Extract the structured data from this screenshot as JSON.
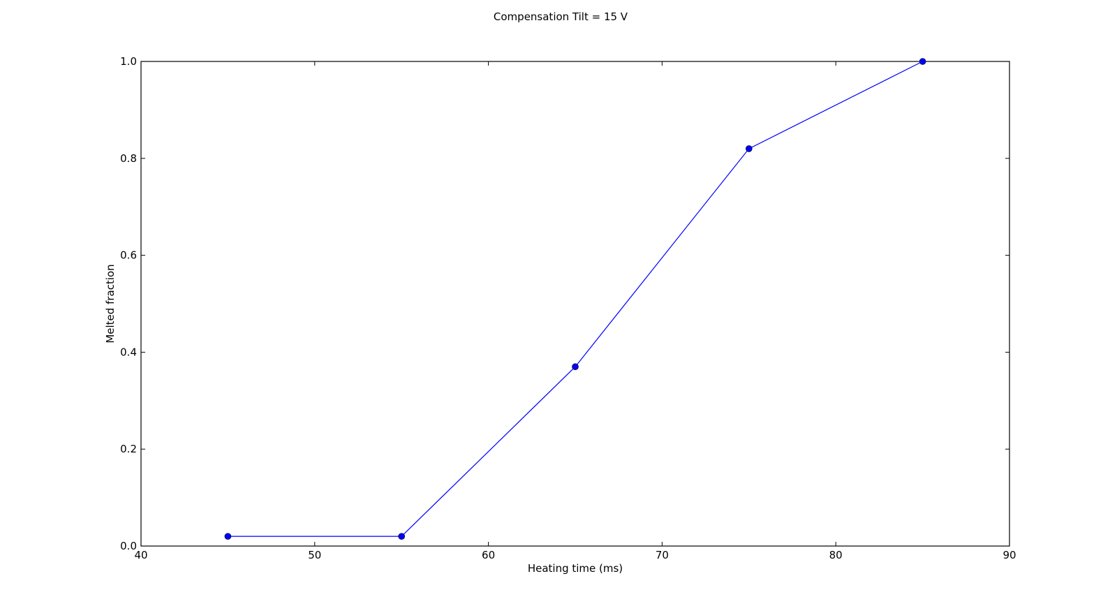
{
  "chart_data": {
    "type": "line",
    "title": "Compensation Tilt = 15 V",
    "xlabel": "Heating time (ms)",
    "ylabel": "Melted fraction",
    "xlim": [
      40,
      90
    ],
    "ylim": [
      0.0,
      1.0
    ],
    "xticks": [
      "40",
      "50",
      "60",
      "70",
      "80",
      "90"
    ],
    "yticks": [
      "0.0",
      "0.2",
      "0.4",
      "0.6",
      "0.8",
      "1.0"
    ],
    "grid": false,
    "legend": "none",
    "series": [
      {
        "x": [
          45,
          55,
          65,
          75,
          85
        ],
        "y": [
          0.02,
          0.02,
          0.37,
          0.82,
          1.0
        ],
        "color": "#0000ff",
        "marker": "circle"
      }
    ]
  }
}
